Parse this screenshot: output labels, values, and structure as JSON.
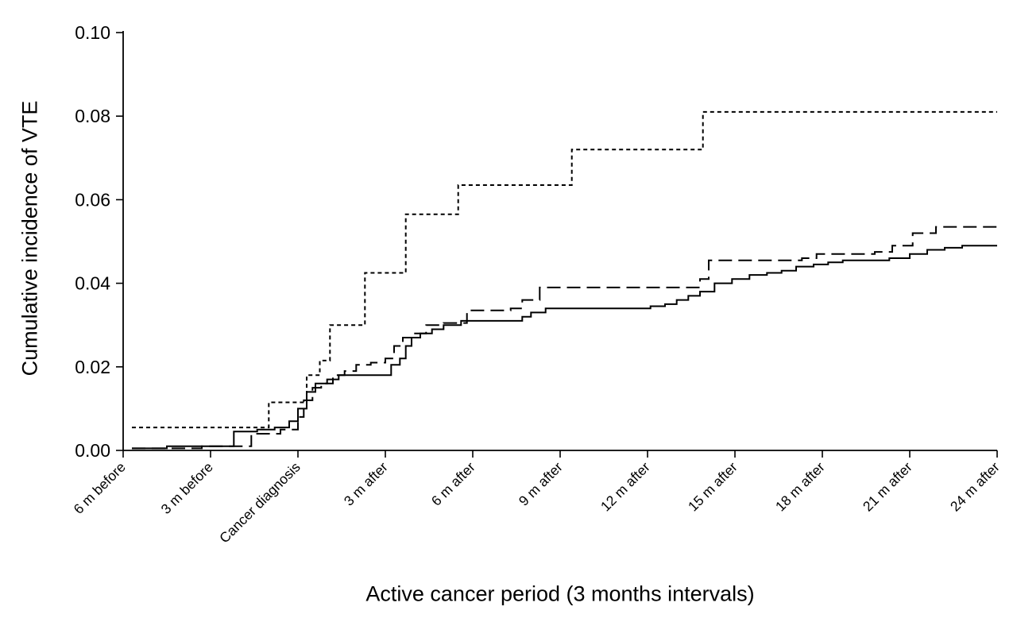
{
  "chart_data": {
    "type": "line",
    "subtype": "step-cumulative-incidence",
    "title": "",
    "xlabel": "Active cancer period (3 months intervals)",
    "ylabel": "Cumulative incidence of VTE",
    "xlim": [
      -6,
      24
    ],
    "ylim": [
      0,
      0.1
    ],
    "grid": false,
    "legend": "none",
    "axis_color": "#000000",
    "yticks": [
      {
        "value": 0.0,
        "label": "0.00"
      },
      {
        "value": 0.02,
        "label": "0.02"
      },
      {
        "value": 0.04,
        "label": "0.04"
      },
      {
        "value": 0.06,
        "label": "0.06"
      },
      {
        "value": 0.08,
        "label": "0.08"
      },
      {
        "value": 0.1,
        "label": "0.10"
      }
    ],
    "xticks": [
      {
        "value": -6,
        "label": "6 m before"
      },
      {
        "value": -3,
        "label": "3 m before"
      },
      {
        "value": 0,
        "label": "Cancer diagnosis"
      },
      {
        "value": 3,
        "label": "3 m after"
      },
      {
        "value": 6,
        "label": "6 m after"
      },
      {
        "value": 9,
        "label": "9 m after"
      },
      {
        "value": 12,
        "label": "12 m after"
      },
      {
        "value": 15,
        "label": "15 m after"
      },
      {
        "value": 18,
        "label": "18 m after"
      },
      {
        "value": 21,
        "label": "21 m after"
      },
      {
        "value": 24,
        "label": "24 m after"
      }
    ],
    "series": [
      {
        "name": "short-dashed",
        "line_style": "short-dash",
        "dash": "5,4",
        "color": "#000000",
        "width": 2,
        "points": [
          [
            -5.7,
            0.0055
          ],
          [
            -1.0,
            0.0115
          ],
          [
            0.3,
            0.018
          ],
          [
            0.75,
            0.0215
          ],
          [
            1.1,
            0.03
          ],
          [
            2.3,
            0.0425
          ],
          [
            3.7,
            0.0565
          ],
          [
            5.5,
            0.0635
          ],
          [
            9.4,
            0.072
          ],
          [
            13.9,
            0.081
          ],
          [
            24,
            0.081
          ]
        ]
      },
      {
        "name": "long-dashed",
        "line_style": "long-dash",
        "dash": "17,8",
        "color": "#000000",
        "width": 2,
        "points": [
          [
            -5.7,
            0.0005
          ],
          [
            -3.3,
            0.001
          ],
          [
            -1.6,
            0.004
          ],
          [
            -0.6,
            0.005
          ],
          [
            0.0,
            0.008
          ],
          [
            0.2,
            0.012
          ],
          [
            0.5,
            0.015
          ],
          [
            0.8,
            0.016
          ],
          [
            1.2,
            0.018
          ],
          [
            1.6,
            0.019
          ],
          [
            2.0,
            0.0205
          ],
          [
            2.5,
            0.021
          ],
          [
            3.0,
            0.022
          ],
          [
            3.3,
            0.025
          ],
          [
            3.6,
            0.027
          ],
          [
            3.9,
            0.028
          ],
          [
            4.4,
            0.03
          ],
          [
            5.0,
            0.0305
          ],
          [
            5.8,
            0.0335
          ],
          [
            7.3,
            0.034
          ],
          [
            7.7,
            0.036
          ],
          [
            8.3,
            0.039
          ],
          [
            13.8,
            0.041
          ],
          [
            14.1,
            0.0455
          ],
          [
            17.3,
            0.046
          ],
          [
            17.8,
            0.047
          ],
          [
            19.8,
            0.0475
          ],
          [
            20.4,
            0.049
          ],
          [
            21.1,
            0.052
          ],
          [
            21.9,
            0.0535
          ],
          [
            24,
            0.0535
          ]
        ]
      },
      {
        "name": "solid",
        "line_style": "solid",
        "dash": "",
        "color": "#000000",
        "width": 2,
        "points": [
          [
            -5.7,
            0.0005
          ],
          [
            -4.5,
            0.001
          ],
          [
            -2.2,
            0.0045
          ],
          [
            -1.4,
            0.005
          ],
          [
            -0.8,
            0.0055
          ],
          [
            -0.3,
            0.007
          ],
          [
            0.0,
            0.01
          ],
          [
            0.3,
            0.014
          ],
          [
            0.6,
            0.016
          ],
          [
            1.0,
            0.017
          ],
          [
            1.4,
            0.018
          ],
          [
            3.2,
            0.0205
          ],
          [
            3.5,
            0.022
          ],
          [
            3.7,
            0.025
          ],
          [
            3.9,
            0.027
          ],
          [
            4.2,
            0.028
          ],
          [
            4.6,
            0.029
          ],
          [
            5.0,
            0.03
          ],
          [
            5.6,
            0.031
          ],
          [
            7.7,
            0.032
          ],
          [
            8.0,
            0.033
          ],
          [
            8.5,
            0.034
          ],
          [
            12.1,
            0.0345
          ],
          [
            12.6,
            0.035
          ],
          [
            13.0,
            0.036
          ],
          [
            13.4,
            0.037
          ],
          [
            13.8,
            0.038
          ],
          [
            14.3,
            0.04
          ],
          [
            14.9,
            0.041
          ],
          [
            15.5,
            0.042
          ],
          [
            16.1,
            0.0425
          ],
          [
            16.6,
            0.043
          ],
          [
            17.1,
            0.044
          ],
          [
            17.7,
            0.0445
          ],
          [
            18.2,
            0.045
          ],
          [
            18.7,
            0.0455
          ],
          [
            20.3,
            0.046
          ],
          [
            21.0,
            0.047
          ],
          [
            21.6,
            0.048
          ],
          [
            22.2,
            0.0485
          ],
          [
            22.8,
            0.049
          ],
          [
            24,
            0.049
          ]
        ]
      }
    ]
  }
}
